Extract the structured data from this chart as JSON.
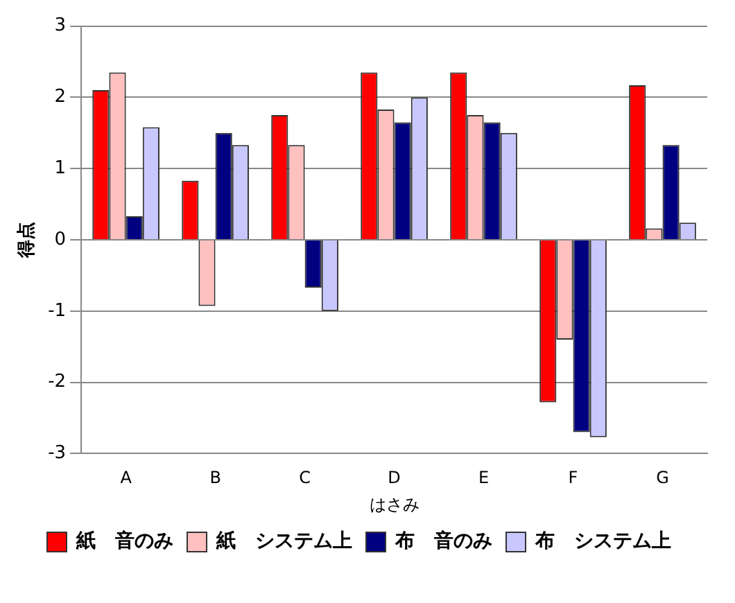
{
  "chart_data": {
    "type": "bar",
    "xlabel": "はさみ",
    "ylabel": "得点",
    "categories": [
      "A",
      "B",
      "C",
      "D",
      "E",
      "F",
      "G"
    ],
    "series": [
      {
        "name": "紙　音のみ",
        "color": "#ff0000",
        "values": [
          2.1,
          0.83,
          1.75,
          2.35,
          2.35,
          -2.28,
          2.17
        ]
      },
      {
        "name": "紙　システム上",
        "color": "#ffc0c0",
        "values": [
          2.35,
          -0.93,
          1.33,
          1.83,
          1.75,
          -1.4,
          0.16
        ]
      },
      {
        "name": "布　音のみ",
        "color": "#000080",
        "values": [
          0.33,
          1.5,
          -0.67,
          1.65,
          1.65,
          -2.7,
          1.33
        ]
      },
      {
        "name": "布　システム上",
        "color": "#c8c8ff",
        "values": [
          1.58,
          1.33,
          -1.0,
          2.0,
          1.5,
          -2.77,
          0.24
        ]
      }
    ],
    "ylim": [
      -3,
      3
    ],
    "yticks": [
      -3,
      -2,
      -1,
      0,
      1,
      2,
      3
    ],
    "grid": "y",
    "legend": "bottom"
  }
}
